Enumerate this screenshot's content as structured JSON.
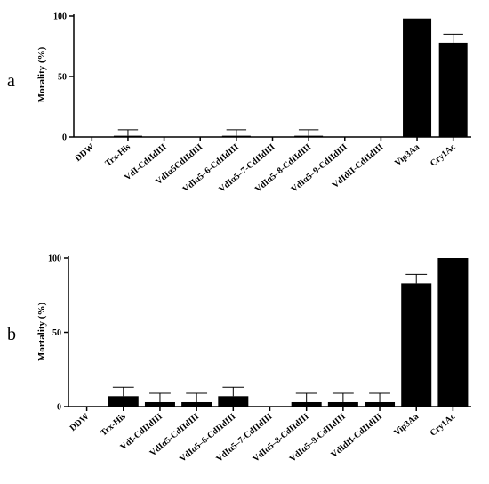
{
  "chart_data": [
    {
      "type": "bar",
      "panel_label": "a",
      "ylabel": "Morality  (%)",
      "ylim": [
        0,
        100
      ],
      "yticks": [
        0,
        50,
        100
      ],
      "categories": [
        "DDW",
        "Trx-His",
        "VdI-CdIIdIII",
        "VdIα5CdIIdIII",
        "VdIα5–6-CdIIdIII",
        "VdIα5–7-CdIIdIII",
        "VdIα5–8-CdIIdIII",
        "VdIα5–9-CdIIdIII",
        "VdIdII-CdIIdIII",
        "Vip3Aa",
        "Cry1Ac"
      ],
      "values": [
        0,
        1,
        0,
        0,
        1,
        0,
        1,
        0,
        0,
        98,
        78
      ],
      "errors": [
        0,
        5,
        0,
        0,
        5,
        0,
        5,
        0,
        0,
        0,
        7
      ],
      "bar_color": "#000000"
    },
    {
      "type": "bar",
      "panel_label": "b",
      "ylabel": "Mortality (%)",
      "ylim": [
        0,
        100
      ],
      "yticks": [
        0,
        50,
        100
      ],
      "categories": [
        "DDW",
        "Trx-His",
        "VdI-CdIIdIII",
        "VdIα5-CdIIdIII",
        "VdIα5–6-CdIIdIII",
        "VdIα5–7-CdIIdIII",
        "VdIα5–8-CdIIdIII",
        "VdIα5–9-CdIIdIII",
        "VdIdII-CdIIdIII",
        "Vip3Aa",
        "Cry1Ac"
      ],
      "values": [
        0,
        7,
        3,
        3,
        7,
        0,
        3,
        3,
        3,
        83,
        100
      ],
      "errors": [
        0,
        6,
        6,
        6,
        6,
        0,
        6,
        6,
        6,
        6,
        0
      ],
      "bar_color": "#000000"
    }
  ]
}
